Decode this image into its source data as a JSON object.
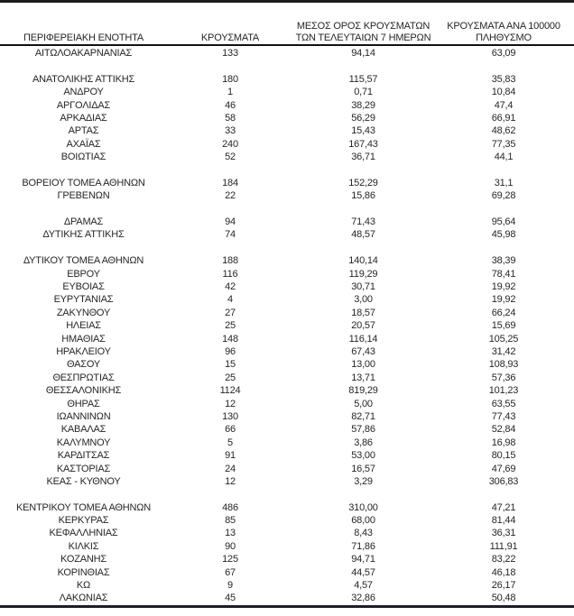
{
  "table": {
    "columns": [
      {
        "label": "ΠΕΡΙΦΕΡΕΙΑΚΗ ΕΝΟΤΗΤΑ"
      },
      {
        "label": "ΚΡΟΥΣΜΑΤΑ"
      },
      {
        "label": "ΜΕΣΟΣ ΟΡΟΣ ΚΡΟΥΣΜΑΤΩΝ ΤΩΝ ΤΕΛΕΥΤΑΙΩΝ 7 ΗΜΕΡΩΝ"
      },
      {
        "label": "ΚΡΟΥΣΜΑΤΑ ΑΝΑ 100000 ΠΛΗΘΥΣΜΟ"
      }
    ],
    "rows": [
      {
        "name": "ΑΙΤΩΛΟΑΚΑΡΝΑΝΙΑΣ",
        "cases": "133",
        "avg7": "94,14",
        "per100k": "63,09"
      },
      {
        "gap": true
      },
      {
        "name": "ΑΝΑΤΟΛΙΚΗΣ ΑΤΤΙΚΗΣ",
        "cases": "180",
        "avg7": "115,57",
        "per100k": "35,83"
      },
      {
        "name": "ΑΝΔΡΟΥ",
        "cases": "1",
        "avg7": "0,71",
        "per100k": "10,84"
      },
      {
        "name": "ΑΡΓΟΛΙΔΑΣ",
        "cases": "46",
        "avg7": "38,29",
        "per100k": "47,4"
      },
      {
        "name": "ΑΡΚΑΔΙΑΣ",
        "cases": "58",
        "avg7": "56,29",
        "per100k": "66,91"
      },
      {
        "name": "ΑΡΤΑΣ",
        "cases": "33",
        "avg7": "15,43",
        "per100k": "48,62"
      },
      {
        "name": "ΑΧΑΪΑΣ",
        "cases": "240",
        "avg7": "167,43",
        "per100k": "77,35"
      },
      {
        "name": "ΒΟΙΩΤΙΑΣ",
        "cases": "52",
        "avg7": "36,71",
        "per100k": "44,1"
      },
      {
        "gap": true
      },
      {
        "name": "ΒΟΡΕΙΟΥ ΤΟΜΕΑ ΑΘΗΝΩΝ",
        "cases": "184",
        "avg7": "152,29",
        "per100k": "31,1"
      },
      {
        "name": "ΓΡΕΒΕΝΩΝ",
        "cases": "22",
        "avg7": "15,86",
        "per100k": "69,28"
      },
      {
        "gap": true
      },
      {
        "name": "ΔΡΑΜΑΣ",
        "cases": "94",
        "avg7": "71,43",
        "per100k": "95,64"
      },
      {
        "name": "ΔΥΤΙΚΗΣ ΑΤΤΙΚΗΣ",
        "cases": "74",
        "avg7": "48,57",
        "per100k": "45,98"
      },
      {
        "gap": true
      },
      {
        "name": "ΔΥΤΙΚΟΥ ΤΟΜΕΑ ΑΘΗΝΩΝ",
        "cases": "188",
        "avg7": "140,14",
        "per100k": "38,39"
      },
      {
        "name": "ΕΒΡΟΥ",
        "cases": "116",
        "avg7": "119,29",
        "per100k": "78,41"
      },
      {
        "name": "ΕΥΒΟΙΑΣ",
        "cases": "42",
        "avg7": "30,71",
        "per100k": "19,92"
      },
      {
        "name": "ΕΥΡΥΤΑΝΙΑΣ",
        "cases": "4",
        "avg7": "3,00",
        "per100k": "19,92"
      },
      {
        "name": "ΖΑΚΥΝΘΟΥ",
        "cases": "27",
        "avg7": "18,57",
        "per100k": "66,24"
      },
      {
        "name": "ΗΛΕΙΑΣ",
        "cases": "25",
        "avg7": "20,57",
        "per100k": "15,69"
      },
      {
        "name": "ΗΜΑΘΙΑΣ",
        "cases": "148",
        "avg7": "116,14",
        "per100k": "105,25"
      },
      {
        "name": "ΗΡΑΚΛΕΙΟΥ",
        "cases": "96",
        "avg7": "67,43",
        "per100k": "31,42"
      },
      {
        "name": "ΘΑΣΟΥ",
        "cases": "15",
        "avg7": "13,00",
        "per100k": "108,93"
      },
      {
        "name": "ΘΕΣΠΡΩΤΙΑΣ",
        "cases": "25",
        "avg7": "13,71",
        "per100k": "57,36"
      },
      {
        "name": "ΘΕΣΣΑΛΟΝΙΚΗΣ",
        "cases": "1124",
        "avg7": "819,29",
        "per100k": "101,23"
      },
      {
        "name": "ΘΗΡΑΣ",
        "cases": "12",
        "avg7": "5,00",
        "per100k": "63,55"
      },
      {
        "name": "ΙΩΑΝΝΙΝΩΝ",
        "cases": "130",
        "avg7": "82,71",
        "per100k": "77,43"
      },
      {
        "name": "ΚΑΒΑΛΑΣ",
        "cases": "66",
        "avg7": "57,86",
        "per100k": "52,84"
      },
      {
        "name": "ΚΑΛΥΜΝΟΥ",
        "cases": "5",
        "avg7": "3,86",
        "per100k": "16,98"
      },
      {
        "name": "ΚΑΡΔΙΤΣΑΣ",
        "cases": "91",
        "avg7": "53,00",
        "per100k": "80,15"
      },
      {
        "name": "ΚΑΣΤΟΡΙΑΣ",
        "cases": "24",
        "avg7": "16,57",
        "per100k": "47,69"
      },
      {
        "name": "ΚΕΑΣ - ΚΥΘΝΟΥ",
        "cases": "12",
        "avg7": "3,29",
        "per100k": "306,83"
      },
      {
        "gap": true
      },
      {
        "name": "ΚΕΝΤΡΙΚΟΥ ΤΟΜΕΑ ΑΘΗΝΩΝ",
        "cases": "486",
        "avg7": "310,00",
        "per100k": "47,21"
      },
      {
        "name": "ΚΕΡΚΥΡΑΣ",
        "cases": "85",
        "avg7": "68,00",
        "per100k": "81,44"
      },
      {
        "name": "ΚΕΦΑΛΛΗΝΙΑΣ",
        "cases": "13",
        "avg7": "8,43",
        "per100k": "36,31"
      },
      {
        "name": "ΚΙΛΚΙΣ",
        "cases": "90",
        "avg7": "71,86",
        "per100k": "111,91"
      },
      {
        "name": "ΚΟΖΑΝΗΣ",
        "cases": "125",
        "avg7": "94,71",
        "per100k": "83,22"
      },
      {
        "name": "ΚΟΡΙΝΘΙΑΣ",
        "cases": "67",
        "avg7": "44,57",
        "per100k": "46,18"
      },
      {
        "name": "ΚΩ",
        "cases": "9",
        "avg7": "4,57",
        "per100k": "26,17"
      },
      {
        "name": "ΛΑΚΩΝΙΑΣ",
        "cases": "45",
        "avg7": "32,86",
        "per100k": "50,48"
      }
    ]
  },
  "colors": {
    "text": "#262626",
    "rule_top": "#1c1c1c",
    "rule_header": "#111111",
    "rule_bottom": "#1d1d26",
    "background": "#ffffff"
  }
}
